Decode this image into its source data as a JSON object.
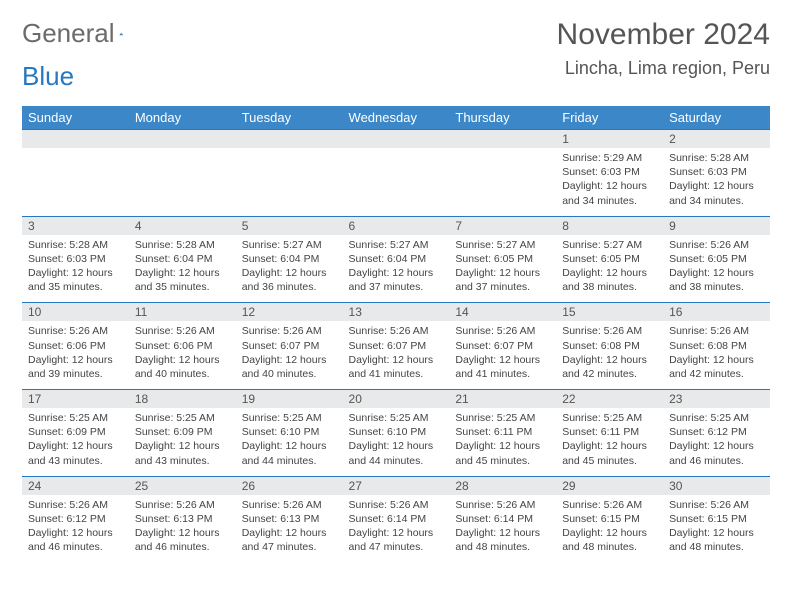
{
  "brand": {
    "name1": "General",
    "name2": "Blue"
  },
  "title": "November 2024",
  "location": "Lincha, Lima region, Peru",
  "colors": {
    "header_bg": "#3b87c8",
    "header_text": "#ffffff",
    "daynum_bg": "#e8e9ea",
    "border": "#2678bf",
    "text": "#444444",
    "title_text": "#555555"
  },
  "day_names": [
    "Sunday",
    "Monday",
    "Tuesday",
    "Wednesday",
    "Thursday",
    "Friday",
    "Saturday"
  ],
  "weeks": [
    {
      "nums": [
        "",
        "",
        "",
        "",
        "",
        "1",
        "2"
      ],
      "cells": [
        null,
        null,
        null,
        null,
        null,
        {
          "sunrise": "5:29 AM",
          "sunset": "6:03 PM",
          "daylight": "12 hours and 34 minutes."
        },
        {
          "sunrise": "5:28 AM",
          "sunset": "6:03 PM",
          "daylight": "12 hours and 34 minutes."
        }
      ]
    },
    {
      "nums": [
        "3",
        "4",
        "5",
        "6",
        "7",
        "8",
        "9"
      ],
      "cells": [
        {
          "sunrise": "5:28 AM",
          "sunset": "6:03 PM",
          "daylight": "12 hours and 35 minutes."
        },
        {
          "sunrise": "5:28 AM",
          "sunset": "6:04 PM",
          "daylight": "12 hours and 35 minutes."
        },
        {
          "sunrise": "5:27 AM",
          "sunset": "6:04 PM",
          "daylight": "12 hours and 36 minutes."
        },
        {
          "sunrise": "5:27 AM",
          "sunset": "6:04 PM",
          "daylight": "12 hours and 37 minutes."
        },
        {
          "sunrise": "5:27 AM",
          "sunset": "6:05 PM",
          "daylight": "12 hours and 37 minutes."
        },
        {
          "sunrise": "5:27 AM",
          "sunset": "6:05 PM",
          "daylight": "12 hours and 38 minutes."
        },
        {
          "sunrise": "5:26 AM",
          "sunset": "6:05 PM",
          "daylight": "12 hours and 38 minutes."
        }
      ]
    },
    {
      "nums": [
        "10",
        "11",
        "12",
        "13",
        "14",
        "15",
        "16"
      ],
      "cells": [
        {
          "sunrise": "5:26 AM",
          "sunset": "6:06 PM",
          "daylight": "12 hours and 39 minutes."
        },
        {
          "sunrise": "5:26 AM",
          "sunset": "6:06 PM",
          "daylight": "12 hours and 40 minutes."
        },
        {
          "sunrise": "5:26 AM",
          "sunset": "6:07 PM",
          "daylight": "12 hours and 40 minutes."
        },
        {
          "sunrise": "5:26 AM",
          "sunset": "6:07 PM",
          "daylight": "12 hours and 41 minutes."
        },
        {
          "sunrise": "5:26 AM",
          "sunset": "6:07 PM",
          "daylight": "12 hours and 41 minutes."
        },
        {
          "sunrise": "5:26 AM",
          "sunset": "6:08 PM",
          "daylight": "12 hours and 42 minutes."
        },
        {
          "sunrise": "5:26 AM",
          "sunset": "6:08 PM",
          "daylight": "12 hours and 42 minutes."
        }
      ]
    },
    {
      "nums": [
        "17",
        "18",
        "19",
        "20",
        "21",
        "22",
        "23"
      ],
      "cells": [
        {
          "sunrise": "5:25 AM",
          "sunset": "6:09 PM",
          "daylight": "12 hours and 43 minutes."
        },
        {
          "sunrise": "5:25 AM",
          "sunset": "6:09 PM",
          "daylight": "12 hours and 43 minutes."
        },
        {
          "sunrise": "5:25 AM",
          "sunset": "6:10 PM",
          "daylight": "12 hours and 44 minutes."
        },
        {
          "sunrise": "5:25 AM",
          "sunset": "6:10 PM",
          "daylight": "12 hours and 44 minutes."
        },
        {
          "sunrise": "5:25 AM",
          "sunset": "6:11 PM",
          "daylight": "12 hours and 45 minutes."
        },
        {
          "sunrise": "5:25 AM",
          "sunset": "6:11 PM",
          "daylight": "12 hours and 45 minutes."
        },
        {
          "sunrise": "5:25 AM",
          "sunset": "6:12 PM",
          "daylight": "12 hours and 46 minutes."
        }
      ]
    },
    {
      "nums": [
        "24",
        "25",
        "26",
        "27",
        "28",
        "29",
        "30"
      ],
      "cells": [
        {
          "sunrise": "5:26 AM",
          "sunset": "6:12 PM",
          "daylight": "12 hours and 46 minutes."
        },
        {
          "sunrise": "5:26 AM",
          "sunset": "6:13 PM",
          "daylight": "12 hours and 46 minutes."
        },
        {
          "sunrise": "5:26 AM",
          "sunset": "6:13 PM",
          "daylight": "12 hours and 47 minutes."
        },
        {
          "sunrise": "5:26 AM",
          "sunset": "6:14 PM",
          "daylight": "12 hours and 47 minutes."
        },
        {
          "sunrise": "5:26 AM",
          "sunset": "6:14 PM",
          "daylight": "12 hours and 48 minutes."
        },
        {
          "sunrise": "5:26 AM",
          "sunset": "6:15 PM",
          "daylight": "12 hours and 48 minutes."
        },
        {
          "sunrise": "5:26 AM",
          "sunset": "6:15 PM",
          "daylight": "12 hours and 48 minutes."
        }
      ]
    }
  ]
}
